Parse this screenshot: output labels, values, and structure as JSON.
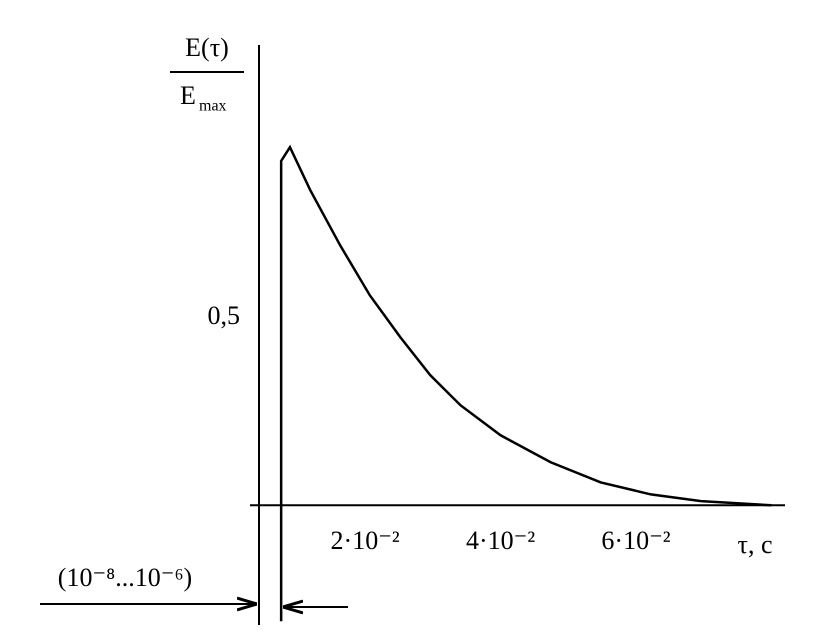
{
  "chart_data": {
    "type": "line",
    "ylabel_numerator": "E(τ)",
    "ylabel_denominator": "E",
    "ylabel_subscript": "max",
    "xlabel": "τ, c",
    "annotation": "(10⁻⁸...10⁻⁶)",
    "xlim": [
      0.003,
      0.082
    ],
    "ylim": [
      -0.32,
      1.23
    ],
    "xticks": [
      {
        "value": 0.02,
        "label": "2·10⁻²"
      },
      {
        "value": 0.04,
        "label": "4·10⁻²"
      },
      {
        "value": 0.06,
        "label": "6·10⁻²"
      }
    ],
    "yticks": [
      {
        "value": 0.5,
        "label": "0,5"
      }
    ],
    "grid": false,
    "series": [
      {
        "color": "#000000",
        "x": [
          0.0076,
          0.0076,
          0.0089,
          0.0119,
          0.0163,
          0.0207,
          0.0252,
          0.0296,
          0.0341,
          0.04,
          0.0474,
          0.0548,
          0.0622,
          0.0696,
          0.08
        ],
        "values": [
          -0.31,
          0.92,
          0.957,
          0.842,
          0.695,
          0.561,
          0.449,
          0.348,
          0.267,
          0.187,
          0.115,
          0.061,
          0.029,
          0.011,
          0
        ]
      }
    ]
  }
}
